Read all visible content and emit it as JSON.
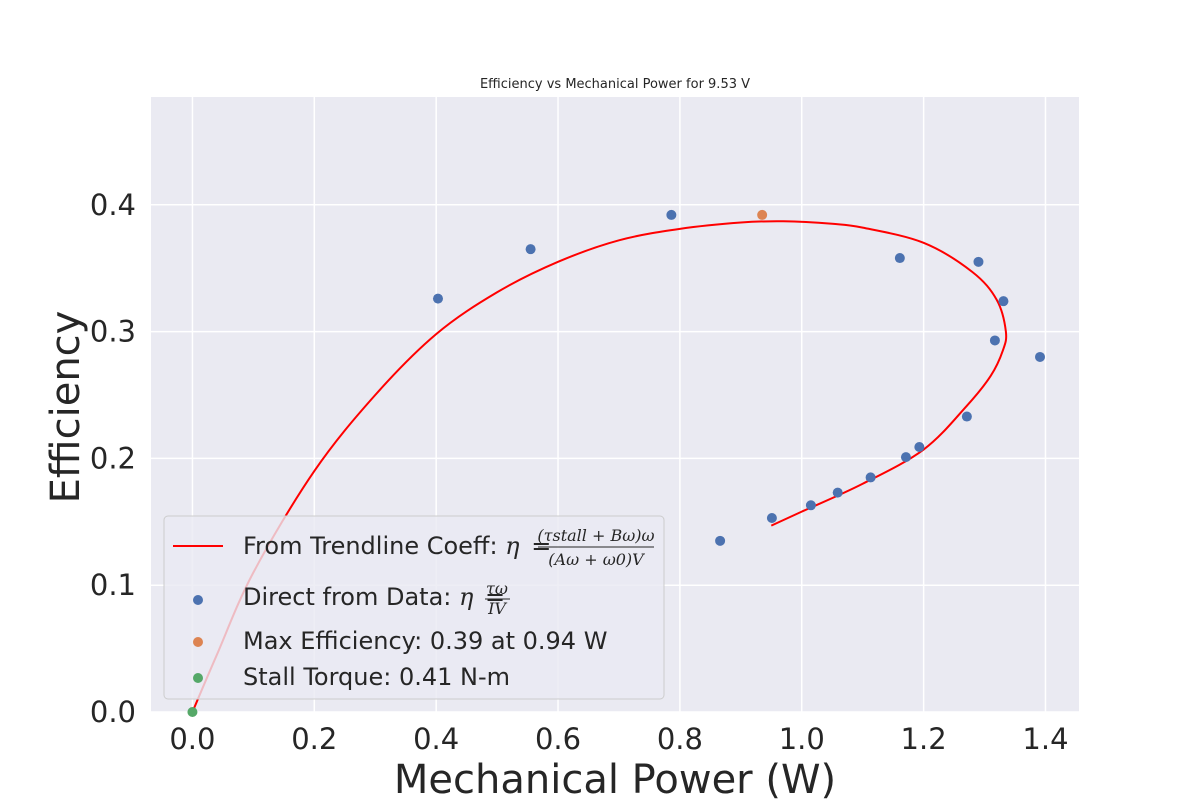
{
  "chart_data": {
    "type": "scatter",
    "title": "Efficiency vs Mechanical Power for 9.53 V",
    "xlabel": "Mechanical Power (W)",
    "ylabel": "Efficiency",
    "xlim": [
      -0.068,
      1.455
    ],
    "ylim": [
      0.0,
      0.485
    ],
    "x_ticks": [
      "0.0",
      "0.2",
      "0.4",
      "0.6",
      "0.8",
      "1.0",
      "1.2",
      "1.4"
    ],
    "y_ticks": [
      "0.0",
      "0.1",
      "0.2",
      "0.3",
      "0.4"
    ],
    "grid": true,
    "legend_position": "lower-left",
    "series": [
      {
        "name": "From Trendline Coeff: η = (τstall + Bω)ω / (Aω + ω0)V",
        "kind": "line",
        "color": "#ff0000",
        "x": [
          0.0,
          0.04,
          0.1,
          0.2,
          0.3,
          0.4,
          0.5,
          0.6,
          0.7,
          0.8,
          0.9,
          0.97,
          1.05,
          1.1,
          1.2,
          1.28,
          1.32,
          1.335,
          1.33,
          1.31,
          1.27,
          1.2,
          1.1,
          1.0,
          0.95
        ],
        "y": [
          0.0,
          0.045,
          0.11,
          0.19,
          0.25,
          0.298,
          0.331,
          0.355,
          0.372,
          0.381,
          0.386,
          0.387,
          0.385,
          0.382,
          0.37,
          0.347,
          0.325,
          0.3,
          0.285,
          0.265,
          0.241,
          0.207,
          0.18,
          0.158,
          0.147
        ]
      },
      {
        "name": "Direct from Data: η = τω / IV",
        "kind": "scatter",
        "color": "#4c72b0",
        "x": [
          0.403,
          0.555,
          0.786,
          0.866,
          0.951,
          1.015,
          1.059,
          1.113,
          1.161,
          1.171,
          1.193,
          1.271,
          1.29,
          1.317,
          1.331,
          1.391
        ],
        "y": [
          0.326,
          0.365,
          0.392,
          0.135,
          0.153,
          0.163,
          0.173,
          0.185,
          0.358,
          0.201,
          0.209,
          0.233,
          0.355,
          0.293,
          0.324,
          0.28
        ]
      },
      {
        "name": "Max Efficiency: 0.39 at 0.94 W",
        "kind": "scatter",
        "color": "#dd8452",
        "x": [
          0.935
        ],
        "y": [
          0.392
        ]
      },
      {
        "name": "Stall Torque: 0.41 N-m",
        "kind": "scatter",
        "color": "#55a868",
        "x": [
          0.0
        ],
        "y": [
          0.0
        ]
      }
    ],
    "legend": {
      "trend_prefix": "From Trendline Coeff: ",
      "trend_eta": "η",
      "trend_eq": "=",
      "trend_num": "(τstall + Bω)ω",
      "trend_den": "(Aω + ω0)V",
      "data_prefix": "Direct from Data: ",
      "data_eta": "η",
      "data_eq": "=",
      "data_num": "τω",
      "data_den": "IV",
      "max_label": "Max Efficiency: 0.39 at 0.94 W",
      "stall_label": "Stall Torque: 0.41 N-m"
    }
  }
}
